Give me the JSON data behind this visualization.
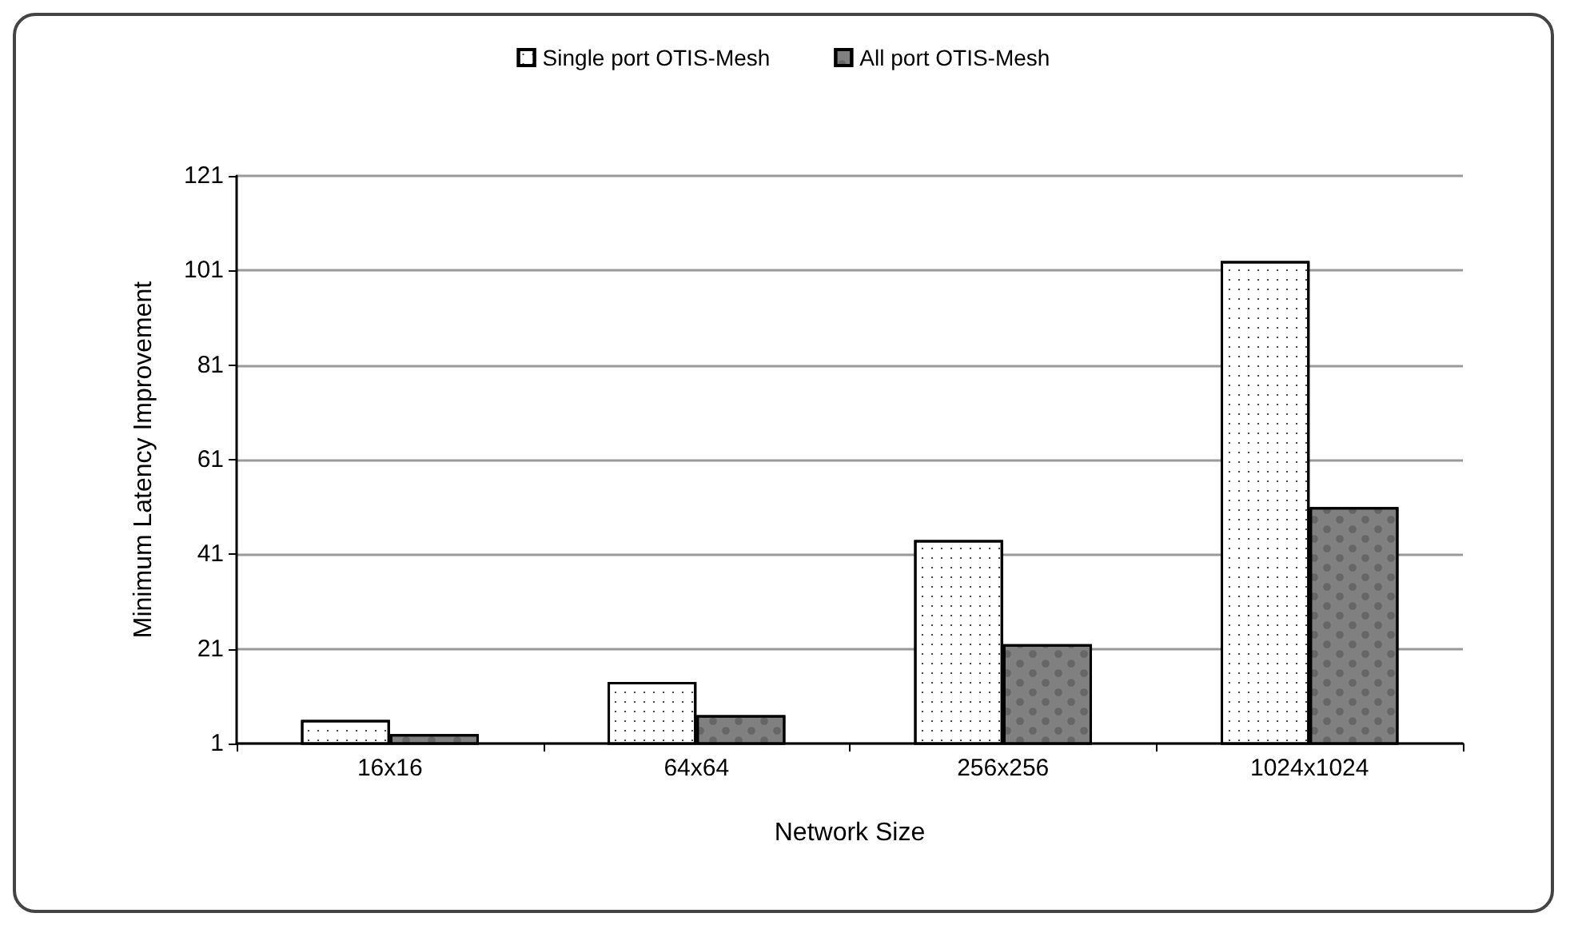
{
  "chart_data": {
    "type": "bar",
    "xlabel": "Network Size",
    "ylabel": "Minimum Latency Improvement",
    "categories": [
      "16x16",
      "64x64",
      "256x256",
      "1024x1024"
    ],
    "series": [
      {
        "name": "Single port OTIS-Mesh",
        "color": "#ffffff",
        "values": [
          6,
          14,
          44,
          103
        ]
      },
      {
        "name": "All port OTIS-Mesh",
        "color": "#808080",
        "values": [
          3,
          7,
          22,
          51
        ]
      }
    ],
    "ylim": [
      1,
      121
    ],
    "yticks": [
      1,
      21,
      41,
      61,
      81,
      101,
      121
    ],
    "grid": "y",
    "legend": "top"
  }
}
